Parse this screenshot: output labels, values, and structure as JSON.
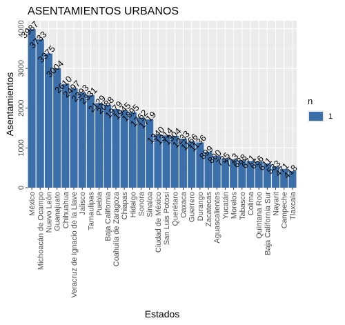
{
  "chart_data": {
    "type": "bar",
    "title": "ASENTAMIENTOS URBANOS",
    "xlabel": "Estados",
    "ylabel": "Asentamientos",
    "ylim": [
      0,
      4200
    ],
    "yticks": [
      0,
      1000,
      2000,
      3000,
      4000
    ],
    "grid": true,
    "legend": {
      "title": "n",
      "position": "right",
      "entries": [
        "1"
      ]
    },
    "bar_color": "#3b6faa",
    "panel_color": "#ebebeb",
    "categories": [
      "México",
      "Michoacán de Ocampo",
      "Nuevo León",
      "Guanajuato",
      "Chihuahua",
      "Veracruz de Ignacio de la Llave",
      "Jalisco",
      "Tamaulipas",
      "Puebla",
      "Baja California",
      "Coahuila de Zaragoza",
      "Chiapas",
      "Hidalgo",
      "Sonora",
      "Sinaloa",
      "Ciudad de México",
      "San Luis Potosí",
      "Querétaro",
      "Oaxaca",
      "Guerrero",
      "Durango",
      "Zacatecas",
      "Aguascalientes",
      "Yucatán",
      "Morelos",
      "Tabasco",
      "Colima",
      "Quintana Roo",
      "Baja California Sur",
      "Nayarit",
      "Campeche",
      "Tlaxcala"
    ],
    "values": [
      3987,
      3733,
      3375,
      3004,
      2610,
      2497,
      2393,
      2331,
      2129,
      2088,
      1979,
      1945,
      1895,
      1762,
      1719,
      1340,
      1314,
      1304,
      1233,
      1166,
      1136,
      899,
      800,
      735,
      713,
      688,
      671,
      656,
      611,
      533,
      471,
      418
    ]
  }
}
